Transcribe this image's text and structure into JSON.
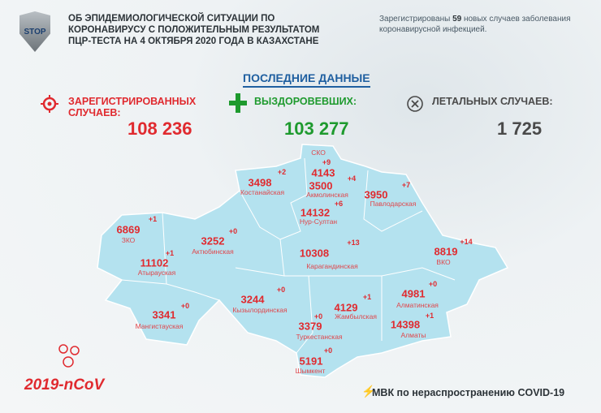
{
  "logo": {
    "text": "STOP"
  },
  "header": {
    "title": "ОБ ЭПИДЕМИОЛОГИЧЕСКОЙ СИТУАЦИИ ПО КОРОНАВИРУСУ С ПОЛОЖИТЕЛЬНЫМ РЕЗУЛЬТАТОМ ПЦР-ТЕСТА НА 4 ОКТЯБРЯ 2020 ГОДА В КАЗАХСТАНЕ",
    "note_prefix": "Зарегистрированы",
    "note_count": "59",
    "note_suffix": "новых случаев заболевания коронавирусной инфекцией."
  },
  "latest": "ПОСЛЕДНИЕ ДАННЫЕ",
  "stats": {
    "cases": {
      "label": "ЗАРЕГИСТРИРОВАННЫХ СЛУЧАЕВ:",
      "value": "108 236",
      "color": "#e02a2f",
      "icon": "virus-icon"
    },
    "recovered": {
      "label": "ВЫЗДОРОВЕВШИХ:",
      "value": "103 277",
      "color": "#1e9a2e",
      "icon": "plus-icon"
    },
    "deaths": {
      "label": "ЛЕТАЛЬНЫХ СЛУЧАЕВ:",
      "value": "1 725",
      "color": "#4a4a4a",
      "icon": "x-circle-icon"
    }
  },
  "regions": [
    {
      "name": "СКО",
      "count": "4143",
      "delta": "+9"
    },
    {
      "name": "Костанайская",
      "count": "3498",
      "delta": "+2"
    },
    {
      "name": "Акмолинская",
      "count": "3500",
      "delta": "+4"
    },
    {
      "name": "Нур-Султан",
      "count": "14132",
      "delta": "+6"
    },
    {
      "name": "Павлодарская",
      "count": "3950",
      "delta": "+7"
    },
    {
      "name": "ЗКО",
      "count": "6869",
      "delta": "+1"
    },
    {
      "name": "Актюбинская",
      "count": "3252",
      "delta": "+0"
    },
    {
      "name": "Атырауская",
      "count": "11102",
      "delta": "+1"
    },
    {
      "name": "Карагандинская",
      "count": "10308",
      "delta": "+13"
    },
    {
      "name": "ВКО",
      "count": "8819",
      "delta": "+14"
    },
    {
      "name": "Мангистауская",
      "count": "3341",
      "delta": "+0"
    },
    {
      "name": "Кызылординская",
      "count": "3244",
      "delta": "+0"
    },
    {
      "name": "Жамбылская",
      "count": "4129",
      "delta": "+1"
    },
    {
      "name": "Туркестанская",
      "count": "3379",
      "delta": "+0"
    },
    {
      "name": "Алматинская",
      "count": "4981",
      "delta": "+0"
    },
    {
      "name": "Алматы",
      "count": "14398",
      "delta": "+1"
    },
    {
      "name": "Шымкент",
      "count": "5191",
      "delta": "+0"
    }
  ],
  "footer": {
    "ncov": "2019-nCoV",
    "mvk": "МВК по нераспространению COVID-19"
  },
  "colors": {
    "map": "#b4e2ef",
    "accent": "#e02a2f"
  }
}
